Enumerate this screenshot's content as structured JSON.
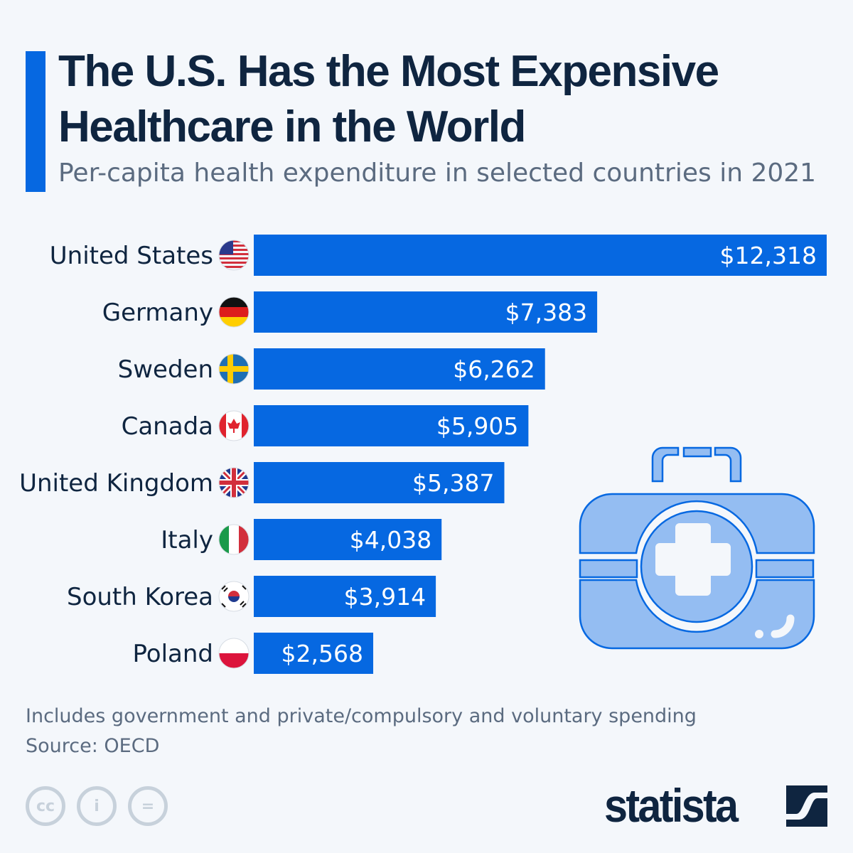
{
  "title": "The U.S. Has the Most Expensive Healthcare in the World",
  "subtitle": "Per-capita health expenditure in selected countries in 2021",
  "chart_data": {
    "type": "bar",
    "orientation": "horizontal",
    "categories": [
      "United States",
      "Germany",
      "Sweden",
      "Canada",
      "United Kingdom",
      "Italy",
      "South Korea",
      "Poland"
    ],
    "values": [
      12318,
      7383,
      6262,
      5905,
      5387,
      4038,
      3914,
      2568
    ],
    "data_labels": [
      "$12,318",
      "$7,383",
      "$6,262",
      "$5,905",
      "$5,387",
      "$4,038",
      "$3,914",
      "$2,568"
    ],
    "unit": "USD",
    "xlim": [
      0,
      12318
    ],
    "grid": false,
    "bar_color": "#0668e1",
    "icons": [
      "flag-us",
      "flag-de",
      "flag-se",
      "flag-ca",
      "flag-uk",
      "flag-it",
      "flag-kr",
      "flag-pl"
    ]
  },
  "footer": {
    "note": "Includes government and private/compulsory and voluntary spending",
    "source": "Source: OECD",
    "license_icons": [
      "cc-icon",
      "attribution-icon",
      "no-derivatives-icon"
    ],
    "license_text": [
      "cc",
      "i",
      "="
    ],
    "brand": "statista"
  },
  "colors": {
    "accent": "#0668e1",
    "title": "#0f2540",
    "subtitle": "#5b6b80",
    "background": "#f4f7fb",
    "illustration": "#94bdf2"
  }
}
